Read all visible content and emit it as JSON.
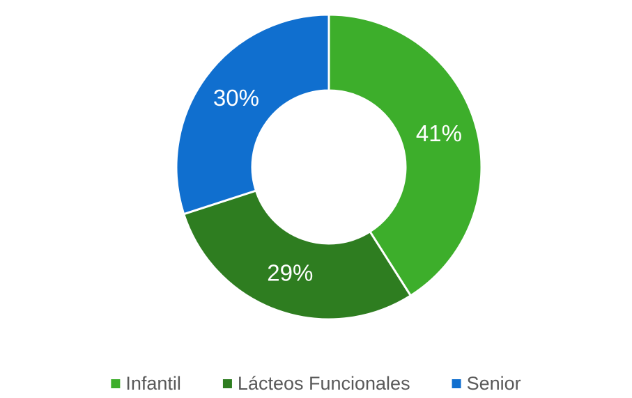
{
  "chart_data": {
    "type": "donut",
    "categories": [
      "Infantil",
      "Lácteos Funcionales",
      "Senior"
    ],
    "values": [
      41,
      29,
      30
    ],
    "value_labels": [
      "41%",
      "29%",
      "30%"
    ],
    "colors": [
      "#3dae2b",
      "#2e7d20",
      "#106fcf"
    ],
    "legend": "bottom"
  }
}
